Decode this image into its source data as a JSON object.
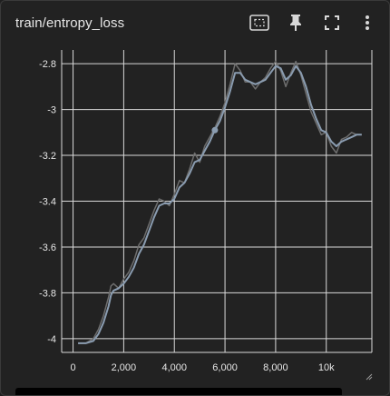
{
  "header": {
    "title": "train/entropy_loss",
    "icons": [
      "select-region-icon",
      "pin-icon",
      "fullscreen-icon",
      "more-vert-icon"
    ]
  },
  "colors": {
    "background": "#222222",
    "grid": "#d9d9d9",
    "axis_text": "#e6e6e6",
    "smoothed_line": "#8a9cb0",
    "raw_line": "#6e6e6e"
  },
  "chart_data": {
    "type": "line",
    "title": "",
    "xlabel": "",
    "ylabel": "",
    "xlim": [
      -450,
      11800
    ],
    "ylim": [
      -4.06,
      -2.74
    ],
    "x_ticks": [
      0,
      2000,
      4000,
      6000,
      8000,
      10000
    ],
    "x_tick_labels": [
      "0",
      "2,000",
      "4,000",
      "6,000",
      "8,000",
      "10k"
    ],
    "y_ticks": [
      -2.8,
      -3,
      -3.2,
      -3.4,
      -3.6,
      -3.8,
      -4
    ],
    "y_tick_labels": [
      "-2.8",
      "-3",
      "-3.2",
      "-3.4",
      "-3.6",
      "-3.8",
      "-4"
    ],
    "grid": true,
    "series": [
      {
        "role": "raw",
        "x": [
          200,
          500,
          800,
          1000,
          1200,
          1400,
          1500,
          1600,
          1800,
          2000,
          2200,
          2400,
          2600,
          2800,
          3000,
          3200,
          3400,
          3600,
          3800,
          4000,
          4200,
          4400,
          4600,
          4800,
          5000,
          5200,
          5400,
          5600,
          5800,
          6000,
          6200,
          6400,
          6600,
          6800,
          7000,
          7200,
          7400,
          7600,
          7800,
          8000,
          8200,
          8400,
          8600,
          8800,
          9000,
          9200,
          9400,
          9600,
          9800,
          10000,
          10200,
          10400,
          10600,
          10800,
          11000,
          11200,
          11400
        ],
        "values": [
          -4.02,
          -4.02,
          -4.0,
          -3.96,
          -3.9,
          -3.82,
          -3.77,
          -3.76,
          -3.78,
          -3.74,
          -3.71,
          -3.66,
          -3.59,
          -3.56,
          -3.5,
          -3.44,
          -3.39,
          -3.4,
          -3.42,
          -3.37,
          -3.31,
          -3.32,
          -3.26,
          -3.19,
          -3.23,
          -3.16,
          -3.12,
          -3.08,
          -3.03,
          -2.97,
          -2.89,
          -2.8,
          -2.83,
          -2.88,
          -2.88,
          -2.91,
          -2.88,
          -2.86,
          -2.82,
          -2.79,
          -2.83,
          -2.9,
          -2.84,
          -2.79,
          -2.85,
          -2.93,
          -3.01,
          -3.06,
          -3.11,
          -3.1,
          -3.16,
          -3.19,
          -3.13,
          -3.12,
          -3.1,
          -3.11,
          -3.11
        ]
      },
      {
        "role": "smoothed",
        "x": [
          200,
          500,
          800,
          1000,
          1200,
          1400,
          1500,
          1600,
          1800,
          2000,
          2200,
          2400,
          2600,
          2800,
          3000,
          3200,
          3400,
          3600,
          3800,
          4000,
          4200,
          4400,
          4600,
          4800,
          5000,
          5200,
          5400,
          5600,
          5800,
          6000,
          6200,
          6400,
          6600,
          6800,
          7000,
          7200,
          7400,
          7600,
          7800,
          8000,
          8200,
          8400,
          8600,
          8800,
          9000,
          9200,
          9400,
          9600,
          9800,
          10000,
          10200,
          10400,
          10600,
          10800,
          11000,
          11200,
          11400
        ],
        "values": [
          -4.02,
          -4.02,
          -4.01,
          -3.98,
          -3.93,
          -3.86,
          -3.81,
          -3.79,
          -3.78,
          -3.76,
          -3.73,
          -3.69,
          -3.63,
          -3.59,
          -3.53,
          -3.47,
          -3.42,
          -3.41,
          -3.41,
          -3.39,
          -3.34,
          -3.32,
          -3.28,
          -3.23,
          -3.22,
          -3.18,
          -3.14,
          -3.09,
          -3.05,
          -2.99,
          -2.92,
          -2.84,
          -2.84,
          -2.87,
          -2.88,
          -2.89,
          -2.88,
          -2.87,
          -2.84,
          -2.81,
          -2.82,
          -2.87,
          -2.85,
          -2.81,
          -2.84,
          -2.9,
          -2.98,
          -3.04,
          -3.09,
          -3.1,
          -3.14,
          -3.16,
          -3.14,
          -3.13,
          -3.12,
          -3.11,
          -3.11
        ]
      }
    ],
    "marker": {
      "x": 5600,
      "y": -3.09
    }
  }
}
